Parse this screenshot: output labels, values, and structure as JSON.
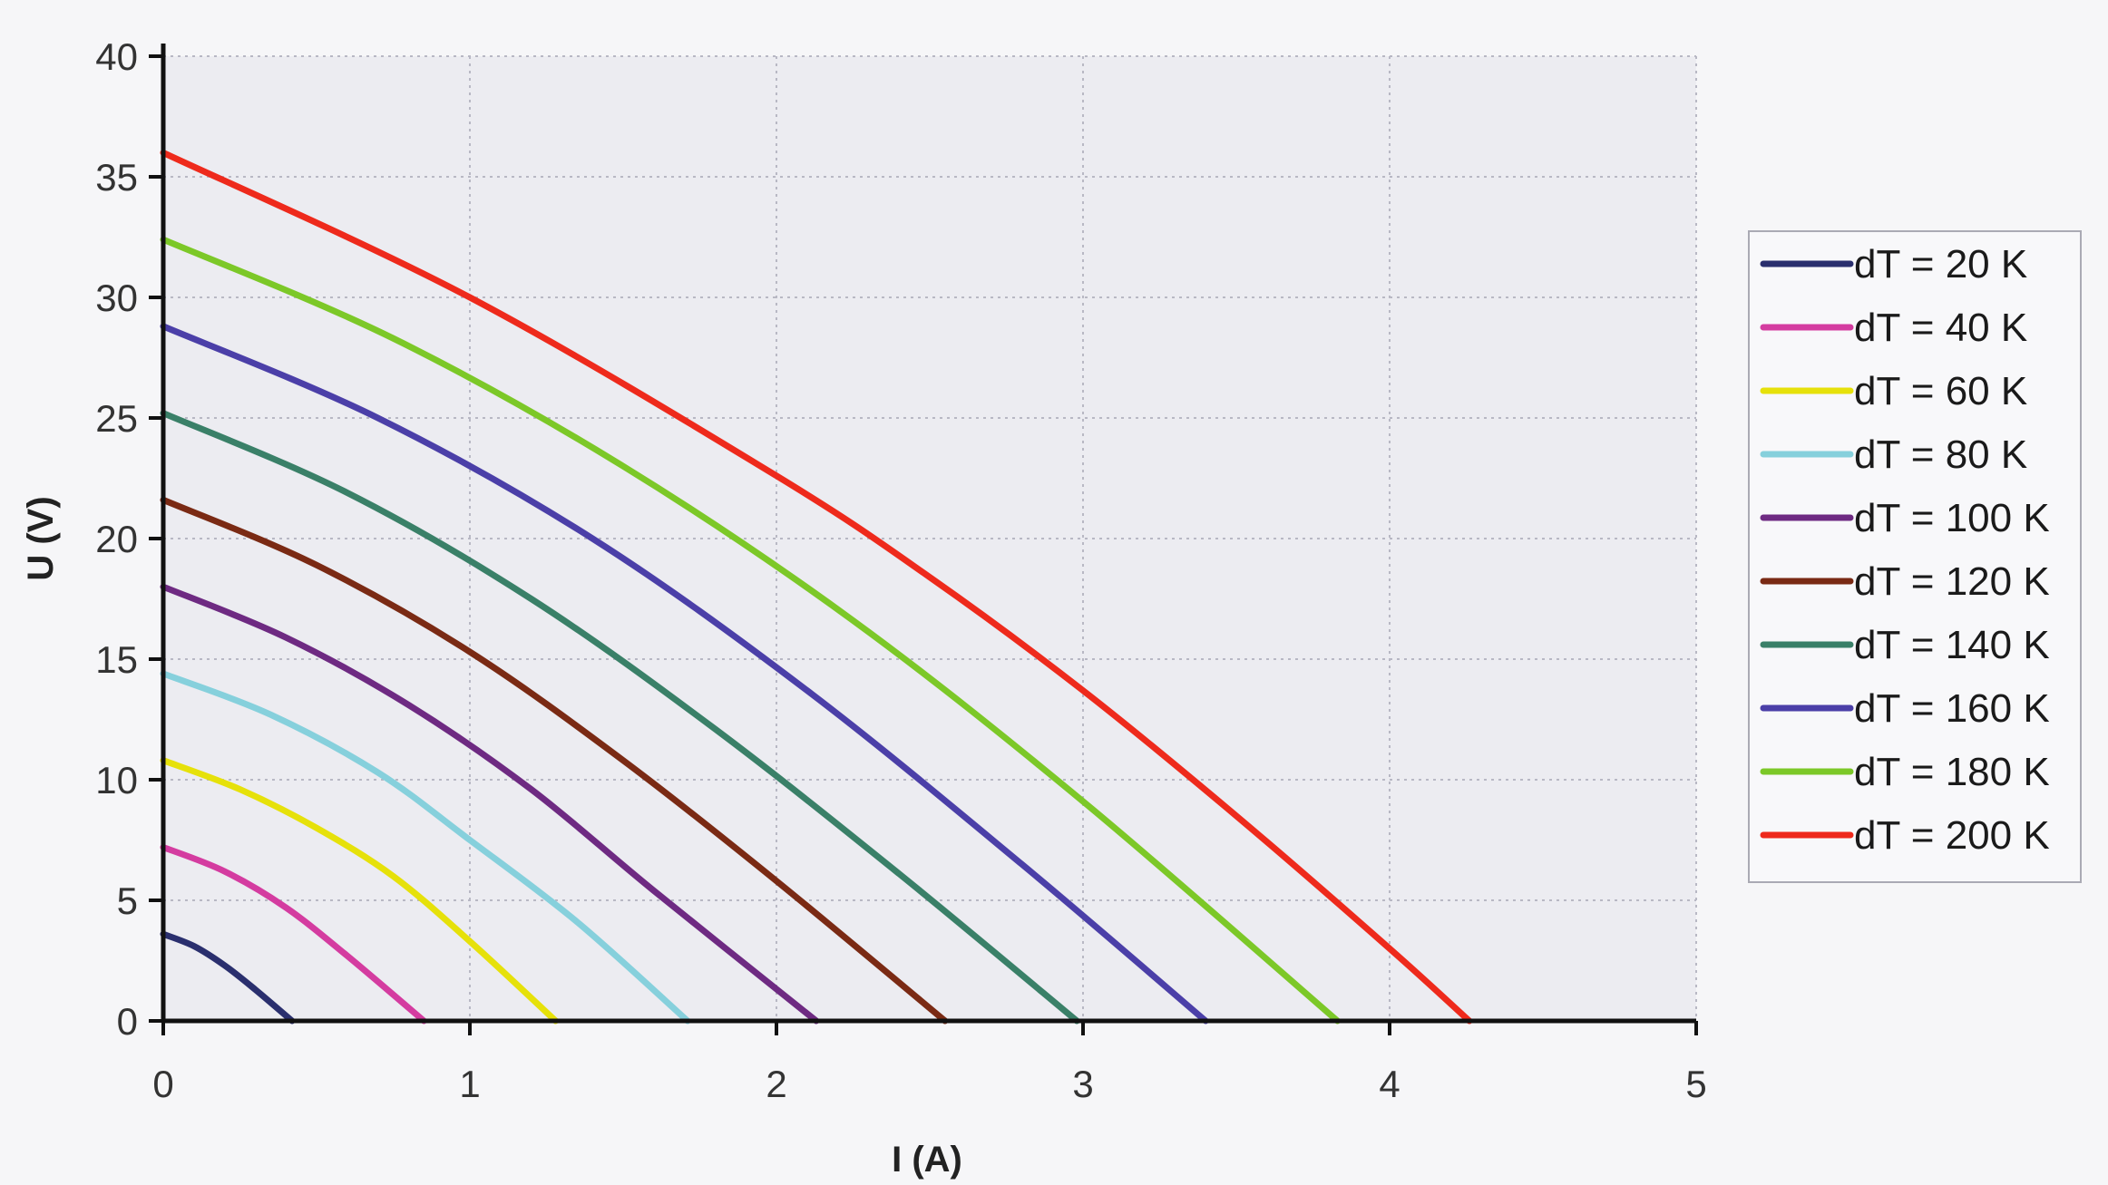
{
  "chart_data": {
    "type": "line",
    "title": "",
    "xlabel": "I (A)",
    "ylabel": "U (V)",
    "xlim": [
      0,
      5
    ],
    "ylim": [
      0,
      40
    ],
    "xticks": [
      "0",
      "1",
      "2",
      "3",
      "4",
      "5"
    ],
    "yticks": [
      "0",
      "5",
      "10",
      "15",
      "20",
      "25",
      "30",
      "35",
      "40"
    ],
    "grid": true,
    "legend_position": "right",
    "series": [
      {
        "name": "dT = 20 K",
        "color": "#2a2f6e",
        "x": [
          0,
          0.1,
          0.2,
          0.3,
          0.42
        ],
        "y": [
          3.6,
          3.1,
          2.3,
          1.3,
          0
        ]
      },
      {
        "name": "dT = 40 K",
        "color": "#d43ca0",
        "x": [
          0,
          0.2,
          0.4,
          0.6,
          0.85
        ],
        "y": [
          7.2,
          6.2,
          4.7,
          2.7,
          0
        ]
      },
      {
        "name": "dT = 60 K",
        "color": "#e6e10a",
        "x": [
          0,
          0.25,
          0.5,
          0.75,
          1.0,
          1.28
        ],
        "y": [
          10.8,
          9.6,
          8.0,
          6.0,
          3.3,
          0
        ]
      },
      {
        "name": "dT = 80 K",
        "color": "#86d0dc",
        "x": [
          0,
          0.35,
          0.7,
          1.0,
          1.35,
          1.71
        ],
        "y": [
          14.4,
          12.7,
          10.3,
          7.5,
          4.1,
          0
        ]
      },
      {
        "name": "dT = 100 K",
        "color": "#6e2a82",
        "x": [
          0,
          0.4,
          0.8,
          1.2,
          1.6,
          2.13
        ],
        "y": [
          18.0,
          15.9,
          13.1,
          9.6,
          5.4,
          0
        ]
      },
      {
        "name": "dT = 120 K",
        "color": "#7a2a14",
        "x": [
          0,
          0.5,
          1.0,
          1.5,
          2.0,
          2.55
        ],
        "y": [
          21.6,
          18.9,
          15.3,
          10.8,
          5.8,
          0
        ]
      },
      {
        "name": "dT = 140 K",
        "color": "#3a8068",
        "x": [
          0,
          0.6,
          1.2,
          1.8,
          2.4,
          2.98
        ],
        "y": [
          25.2,
          21.9,
          17.5,
          12.1,
          6.1,
          0
        ]
      },
      {
        "name": "dT = 160 K",
        "color": "#4b3fa8",
        "x": [
          0,
          0.7,
          1.4,
          2.1,
          2.8,
          3.4
        ],
        "y": [
          28.8,
          25.0,
          20.0,
          13.7,
          6.5,
          0
        ]
      },
      {
        "name": "dT = 180 K",
        "color": "#7cc828",
        "x": [
          0,
          0.75,
          1.5,
          2.25,
          3.0,
          3.83
        ],
        "y": [
          32.4,
          28.3,
          23.0,
          16.6,
          9.1,
          0
        ]
      },
      {
        "name": "dT = 200 K",
        "color": "#ee2a1c",
        "x": [
          0,
          1.0,
          2.0,
          2.5,
          3.0,
          3.5,
          4.0,
          4.26
        ],
        "y": [
          36.0,
          30.0,
          22.6,
          18.4,
          13.7,
          8.5,
          3.0,
          0
        ]
      }
    ]
  }
}
